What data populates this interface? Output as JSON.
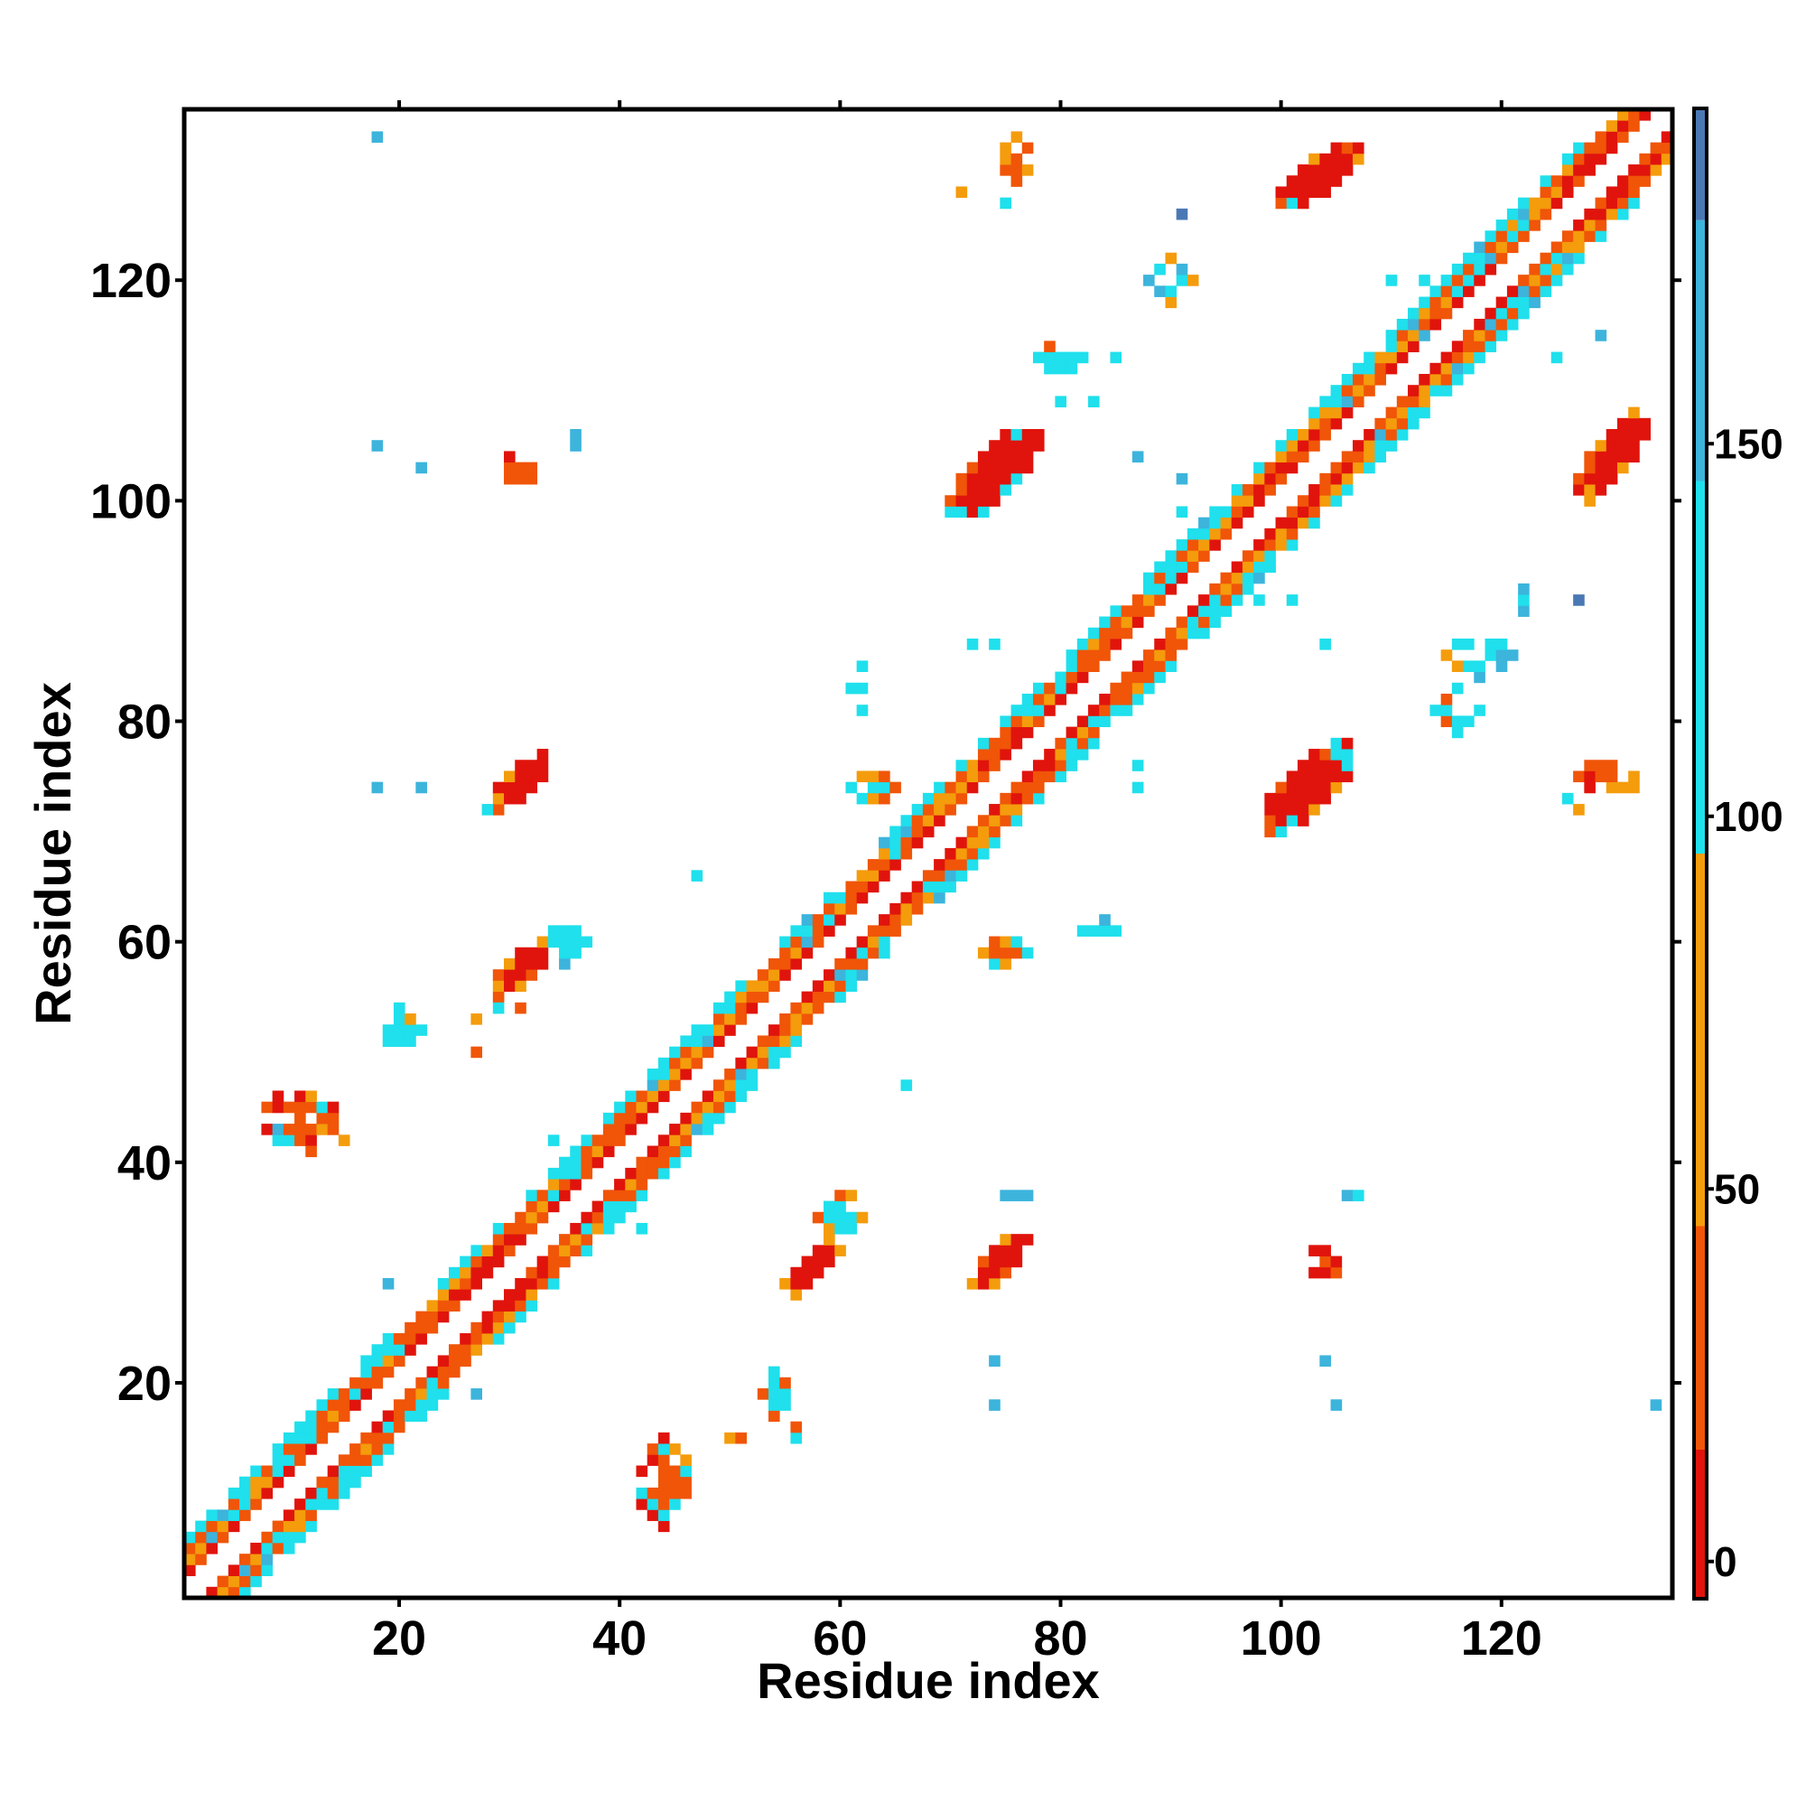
{
  "chart_data": {
    "type": "heatmap",
    "title": "",
    "xlabel": "Residue index",
    "ylabel": "Residue index",
    "xlim": [
      0.5,
      135.5
    ],
    "ylim": [
      0.5,
      135.5
    ],
    "x_ticks": [
      20,
      40,
      60,
      80,
      100,
      120
    ],
    "y_ticks": [
      20,
      40,
      60,
      80,
      100,
      120
    ],
    "grid": false,
    "colorbar": {
      "range": [
        -5,
        195
      ],
      "ticks": [
        0,
        50,
        100,
        150
      ],
      "bins": [
        {
          "from": -5,
          "to": 15,
          "color": "#e0140c"
        },
        {
          "from": 15,
          "to": 45,
          "color": "#f05508"
        },
        {
          "from": 45,
          "to": 95,
          "color": "#f49c0c"
        },
        {
          "from": 95,
          "to": 145,
          "color": "#1fe0ec"
        },
        {
          "from": 145,
          "to": 180,
          "color": "#3cb4dc"
        },
        {
          "from": 180,
          "to": 195,
          "color": "#4a78b4"
        }
      ]
    },
    "palette": {
      "red": "#e0140c",
      "orange": "#f05508",
      "amber": "#f49c0c",
      "cyan": "#1fe0ec",
      "skyblue": "#3cb4dc",
      "steelblue": "#4a78b4"
    },
    "patches": [
      {
        "x": 103.5,
        "y": 129.5,
        "dx": 4,
        "dy": 3,
        "shape": "diag",
        "colors": [
          "red",
          "orange",
          "amber",
          "red",
          "red",
          "cyan"
        ]
      },
      {
        "x": 130,
        "y": 104,
        "dx": 3,
        "dy": 4,
        "shape": "diag",
        "colors": [
          "red",
          "red",
          "orange",
          "amber",
          "red",
          "cyan"
        ]
      },
      {
        "x": 74,
        "y": 102.5,
        "dx": 4,
        "dy": 4,
        "shape": "diag",
        "colors": [
          "red",
          "red",
          "orange",
          "amber",
          "cyan",
          "red"
        ]
      },
      {
        "x": 102.5,
        "y": 74,
        "dx": 4,
        "dy": 4,
        "shape": "diag",
        "colors": [
          "red",
          "red",
          "orange",
          "amber",
          "cyan",
          "red"
        ]
      },
      {
        "x": 31,
        "y": 74.5,
        "dx": 2.5,
        "dy": 2.5,
        "shape": "diag",
        "colors": [
          "red",
          "red",
          "orange",
          "amber",
          "cyan"
        ]
      },
      {
        "x": 31,
        "y": 57.5,
        "dx": 2.5,
        "dy": 2.5,
        "shape": "diag",
        "colors": [
          "red",
          "red",
          "orange",
          "amber",
          "amber"
        ]
      },
      {
        "x": 57.5,
        "y": 30.5,
        "dx": 2.5,
        "dy": 2.5,
        "shape": "diag",
        "colors": [
          "red",
          "red",
          "orange",
          "amber",
          "amber"
        ]
      },
      {
        "x": 74.5,
        "y": 31,
        "dx": 2.5,
        "dy": 2.5,
        "shape": "diag",
        "colors": [
          "red",
          "red",
          "orange",
          "amber",
          "amber"
        ]
      },
      {
        "x": 44,
        "y": 11,
        "dx": 2.5,
        "dy": 4,
        "shape": "blob",
        "colors": [
          "orange",
          "red",
          "amber",
          "cyan"
        ]
      },
      {
        "x": 11,
        "y": 44,
        "dx": 3.5,
        "dy": 2.5,
        "shape": "blob",
        "colors": [
          "orange",
          "red",
          "amber",
          "cyan"
        ]
      },
      {
        "x": 35,
        "y": 60,
        "dx": 2,
        "dy": 2,
        "shape": "blob",
        "colors": [
          "cyan",
          "amber",
          "skyblue"
        ]
      },
      {
        "x": 60,
        "y": 35,
        "dx": 2,
        "dy": 2.5,
        "shape": "blob",
        "colors": [
          "cyan",
          "amber",
          "orange"
        ]
      },
      {
        "x": 76,
        "y": 131,
        "dx": 1.5,
        "dy": 2,
        "shape": "blob",
        "colors": [
          "orange",
          "amber"
        ]
      },
      {
        "x": 90,
        "y": 120,
        "dx": 2,
        "dy": 2,
        "shape": "blob",
        "colors": [
          "cyan",
          "skyblue",
          "amber"
        ]
      },
      {
        "x": 130,
        "y": 75,
        "dx": 3,
        "dy": 1.5,
        "shape": "blob",
        "colors": [
          "orange",
          "amber",
          "red"
        ]
      },
      {
        "x": 75,
        "y": 59,
        "dx": 2,
        "dy": 1.5,
        "shape": "blob",
        "colors": [
          "orange",
          "amber",
          "cyan"
        ]
      },
      {
        "x": 118,
        "y": 86,
        "dx": 3,
        "dy": 2,
        "shape": "blob",
        "colors": [
          "cyan",
          "amber",
          "skyblue"
        ]
      },
      {
        "x": 31,
        "y": 103,
        "dx": 1.5,
        "dy": 1.5,
        "shape": "blob",
        "colors": [
          "orange",
          "red"
        ]
      },
      {
        "x": 63,
        "y": 74,
        "dx": 2.5,
        "dy": 1.5,
        "shape": "blob",
        "colors": [
          "cyan",
          "orange",
          "amber"
        ]
      },
      {
        "x": 104,
        "y": 31,
        "dx": 1.5,
        "dy": 1.5,
        "shape": "blob",
        "colors": [
          "orange",
          "red"
        ]
      },
      {
        "x": 84,
        "y": 61,
        "dx": 2,
        "dy": 1,
        "shape": "blob",
        "colors": [
          "cyan",
          "skyblue",
          "amber"
        ]
      },
      {
        "x": 54,
        "y": 19,
        "dx": 1.5,
        "dy": 2.5,
        "shape": "blob",
        "colors": [
          "cyan",
          "orange"
        ]
      },
      {
        "x": 20,
        "y": 52,
        "dx": 2,
        "dy": 2,
        "shape": "blob",
        "colors": [
          "cyan",
          "orange",
          "amber"
        ]
      },
      {
        "x": 80,
        "y": 113,
        "dx": 2,
        "dy": 1.5,
        "shape": "blob",
        "colors": [
          "cyan",
          "orange"
        ]
      },
      {
        "x": 116,
        "y": 81,
        "dx": 2,
        "dy": 2,
        "shape": "blob",
        "colors": [
          "cyan",
          "orange"
        ]
      },
      {
        "x": 36,
        "y": 106,
        "dx": 0.5,
        "dy": 1.5,
        "shape": "blob",
        "colors": [
          "skyblue"
        ]
      },
      {
        "x": 76,
        "y": 37,
        "dx": 1,
        "dy": 0.5,
        "shape": "blob",
        "colors": [
          "skyblue"
        ]
      },
      {
        "x": 107,
        "y": 37,
        "dx": 1.5,
        "dy": 0.5,
        "shape": "blob",
        "colors": [
          "cyan",
          "skyblue"
        ]
      },
      {
        "x": 62,
        "y": 83,
        "dx": 1,
        "dy": 2.5,
        "shape": "blob",
        "colors": [
          "cyan"
        ]
      },
      {
        "x": 122,
        "y": 91,
        "dx": 1.5,
        "dy": 1,
        "shape": "blob",
        "colors": [
          "cyan",
          "skyblue"
        ]
      }
    ],
    "singles": [
      [
        18,
        133,
        "skyblue"
      ],
      [
        18,
        105,
        "skyblue"
      ],
      [
        22,
        103,
        "skyblue"
      ],
      [
        18,
        74,
        "skyblue"
      ],
      [
        22,
        74,
        "skyblue"
      ],
      [
        91,
        126,
        "steelblue"
      ],
      [
        113,
        115,
        "skyblue"
      ],
      [
        127,
        91,
        "steelblue"
      ],
      [
        134,
        18,
        "skyblue"
      ],
      [
        105,
        18,
        "skyblue"
      ],
      [
        104,
        22,
        "skyblue"
      ],
      [
        74,
        18,
        "skyblue"
      ],
      [
        74,
        22,
        "skyblue"
      ],
      [
        27,
        19,
        "skyblue"
      ],
      [
        19,
        29,
        "skyblue"
      ],
      [
        71,
        128,
        "amber"
      ],
      [
        75,
        127,
        "cyan"
      ],
      [
        87,
        104,
        "skyblue"
      ],
      [
        91,
        102,
        "skyblue"
      ],
      [
        91,
        99,
        "cyan"
      ],
      [
        98,
        91,
        "cyan"
      ],
      [
        101,
        91,
        "cyan"
      ],
      [
        104,
        87,
        "cyan"
      ],
      [
        72,
        87,
        "cyan"
      ],
      [
        74,
        87,
        "cyan"
      ],
      [
        87,
        74,
        "cyan"
      ],
      [
        87,
        76,
        "cyan"
      ],
      [
        66,
        47,
        "cyan"
      ],
      [
        47,
        66,
        "cyan"
      ],
      [
        42,
        34,
        "cyan"
      ],
      [
        34,
        42,
        "cyan"
      ],
      [
        29,
        54,
        "cyan"
      ],
      [
        31,
        54,
        "orange"
      ],
      [
        27,
        50,
        "orange"
      ],
      [
        27,
        53,
        "amber"
      ],
      [
        15,
        42,
        "amber"
      ],
      [
        12,
        41,
        "orange"
      ],
      [
        9,
        43,
        "skyblue"
      ],
      [
        57,
        61,
        "cyan"
      ],
      [
        61,
        57,
        "cyan"
      ],
      [
        28,
        72,
        "cyan"
      ],
      [
        126,
        73,
        "cyan"
      ],
      [
        127,
        72,
        "amber"
      ],
      [
        50,
        15,
        "amber"
      ],
      [
        51,
        15,
        "orange"
      ],
      [
        53,
        19,
        "orange"
      ],
      [
        56,
        15,
        "cyan"
      ],
      [
        56,
        16,
        "orange"
      ],
      [
        110,
        120,
        "cyan"
      ],
      [
        113,
        120,
        "cyan"
      ],
      [
        116,
        119,
        "cyan"
      ],
      [
        120,
        117,
        "cyan"
      ],
      [
        125,
        113,
        "cyan"
      ],
      [
        129,
        115,
        "skyblue"
      ],
      [
        93,
        88,
        "cyan"
      ],
      [
        88,
        93,
        "cyan"
      ],
      [
        80,
        109,
        "cyan"
      ],
      [
        83,
        109,
        "cyan"
      ],
      [
        85,
        113,
        "cyan"
      ]
    ]
  }
}
